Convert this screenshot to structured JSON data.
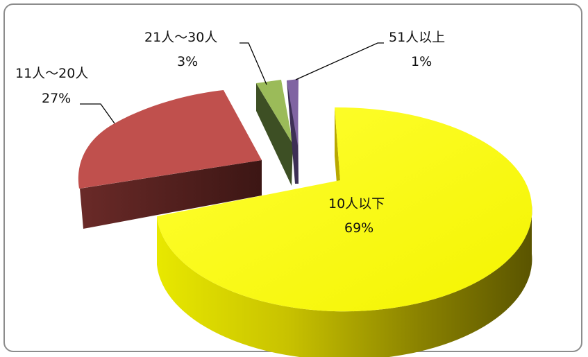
{
  "chart_data": {
    "type": "pie",
    "style": "3d-exploded",
    "title": "",
    "slices": [
      {
        "label": "10人以下",
        "percent": "69%",
        "value": 69,
        "color": "#ffff00"
      },
      {
        "label": "11人～20人",
        "percent": "27%",
        "value": 27,
        "color": "#c0504d"
      },
      {
        "label": "21人～30人",
        "percent": "3%",
        "value": 3,
        "color": "#9bbb59"
      },
      {
        "label": "51人以上",
        "percent": "1%",
        "value": 1,
        "color": "#8064a2"
      }
    ],
    "legend": "none"
  }
}
